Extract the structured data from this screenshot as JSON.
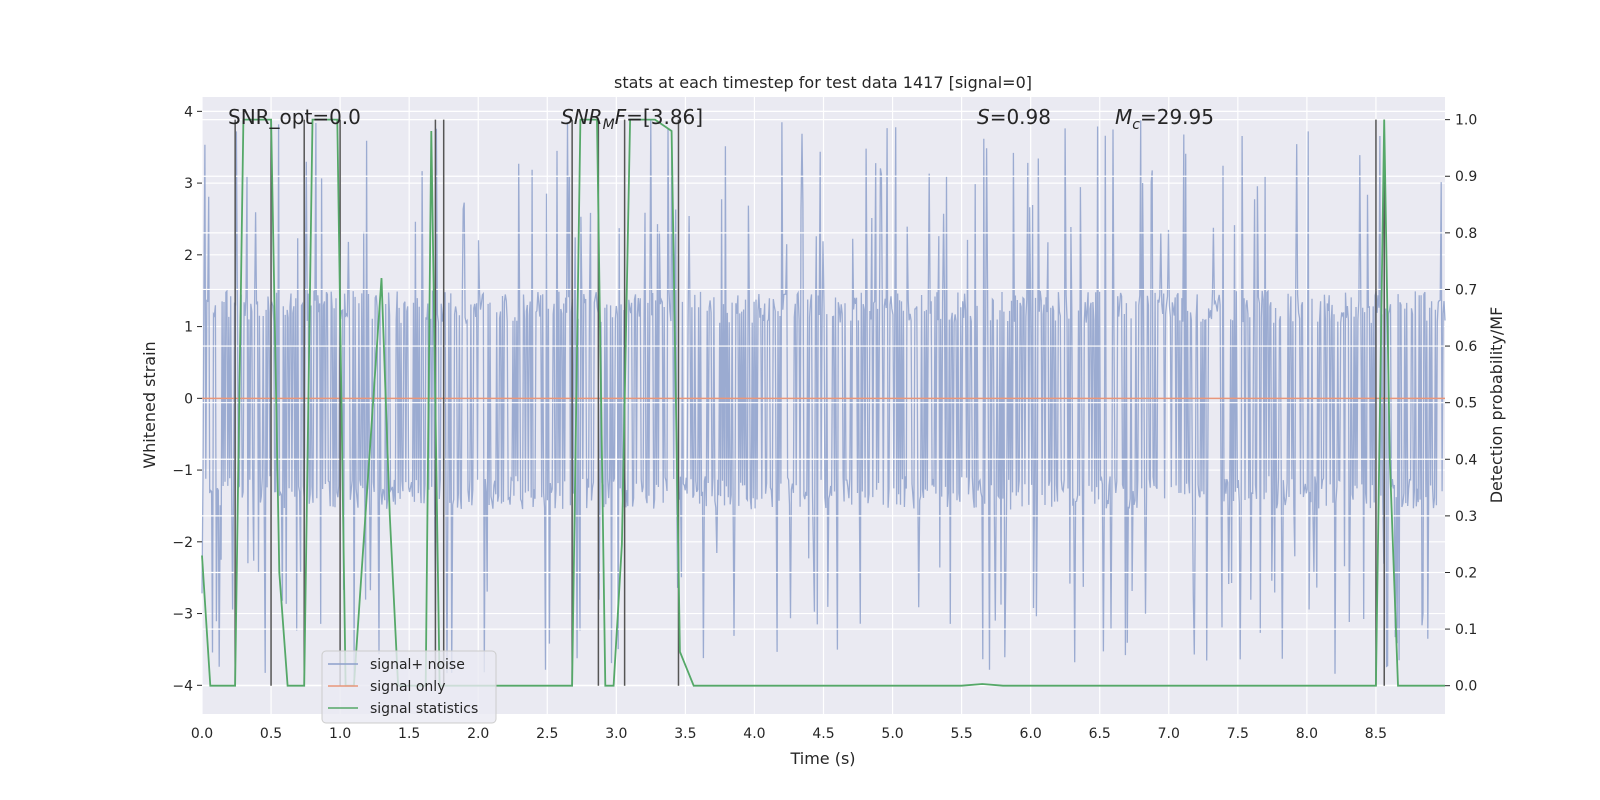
{
  "chart_data": {
    "type": "line",
    "title": "stats at each timestep for test data 1417 [signal=0]",
    "xlabel": "Time (s)",
    "ylabel": "Whitened strain",
    "y2label": "Detection probability/MF",
    "xlim": [
      0.0,
      9.0
    ],
    "ylim": [
      -4.4,
      4.2
    ],
    "y2lim": [
      -0.05,
      1.04
    ],
    "xticks": [
      0.0,
      0.5,
      1.0,
      1.5,
      2.0,
      2.5,
      3.0,
      3.5,
      4.0,
      4.5,
      5.0,
      5.5,
      6.0,
      6.5,
      7.0,
      7.5,
      8.0,
      8.5
    ],
    "xtick_labels": [
      "0.0",
      "0.5",
      "1.0",
      "1.5",
      "2.0",
      "2.5",
      "3.0",
      "3.5",
      "4.0",
      "4.5",
      "5.0",
      "5.5",
      "6.0",
      "6.5",
      "7.0",
      "7.5",
      "8.0",
      "8.5"
    ],
    "yticks": [
      -4,
      -3,
      -2,
      -1,
      0,
      1,
      2,
      3,
      4
    ],
    "ytick_labels": [
      "−4",
      "−3",
      "−2",
      "−1",
      "0",
      "1",
      "2",
      "3",
      "4"
    ],
    "y2ticks": [
      0.0,
      0.1,
      0.2,
      0.3,
      0.4,
      0.5,
      0.6,
      0.7,
      0.8,
      0.9,
      1.0
    ],
    "y2tick_labels": [
      "0.0",
      "0.1",
      "0.2",
      "0.3",
      "0.4",
      "0.5",
      "0.6",
      "0.7",
      "0.8",
      "0.9",
      "1.0"
    ],
    "grid": true,
    "annotations": {
      "snr_opt": "SNR_opt=0.0",
      "snr_mf_sym": "SNR",
      "snr_mf_sub": "M",
      "snr_mf_rest": "F",
      "snr_mf_value": "=[3.86]",
      "s_sym": "S",
      "s_value": "=0.98",
      "mc_sym": "M",
      "mc_sub": "c",
      "mc_value": "=29.95"
    },
    "legend": {
      "position": "lower-left",
      "entries": [
        "signal+ noise",
        "signal only",
        "signal statistics"
      ]
    },
    "colors": {
      "noise": "#8da0cb",
      "signal": "#e8967a",
      "stats": "#55a868",
      "vlines": "#555555",
      "background": "#eaeaf2",
      "grid": "#ffffff"
    },
    "series": [
      {
        "name": "signal+ noise",
        "axis": "left",
        "style": "noise",
        "t_range": [
          0.0,
          9.0
        ],
        "band": [
          -1.55,
          1.5
        ],
        "spike_max": 3.9,
        "spike_min": -3.9
      },
      {
        "name": "signal only",
        "axis": "left",
        "x": [
          0.0,
          9.0
        ],
        "y": [
          0.0,
          0.0
        ]
      },
      {
        "name": "signal statistics",
        "axis": "right",
        "x": [
          0.0,
          0.06,
          0.24,
          0.3,
          0.5,
          0.56,
          0.62,
          0.74,
          0.8,
          0.98,
          1.04,
          1.1,
          1.3,
          1.36,
          1.42,
          1.5,
          1.62,
          1.66,
          1.72,
          1.78,
          1.84,
          1.9,
          2.0,
          2.68,
          2.74,
          2.86,
          2.92,
          2.98,
          3.04,
          3.1,
          3.28,
          3.4,
          3.46,
          3.56,
          4.0,
          5.5,
          5.65,
          5.8,
          6.5,
          8.5,
          8.56,
          8.6,
          8.66,
          9.0
        ],
        "y": [
          0.23,
          0.0,
          0.0,
          1.0,
          1.0,
          0.2,
          0.0,
          0.0,
          1.0,
          1.0,
          0.0,
          0.0,
          0.72,
          0.3,
          0.0,
          0.0,
          0.0,
          0.98,
          0.0,
          0.0,
          0.0,
          0.0,
          0.0,
          0.0,
          1.0,
          1.0,
          0.0,
          0.0,
          0.25,
          1.0,
          1.0,
          0.98,
          0.06,
          0.0,
          0.0,
          0.0,
          0.003,
          0.0,
          0.0,
          0.0,
          1.0,
          0.4,
          0.0,
          0.0
        ]
      }
    ],
    "vertical_markers": [
      0.24,
      0.5,
      0.74,
      1.0,
      1.69,
      1.75,
      2.68,
      2.87,
      3.06,
      3.45,
      8.5,
      8.56
    ]
  }
}
